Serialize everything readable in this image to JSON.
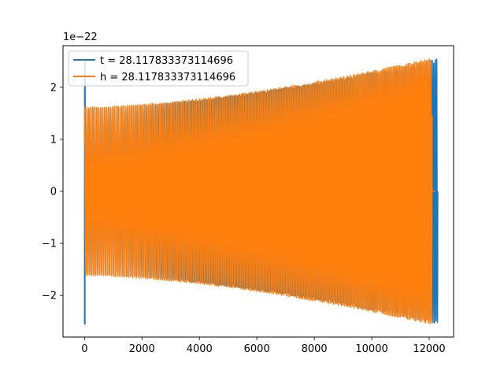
{
  "chart_data": {
    "type": "line",
    "title": "",
    "xlabel": "",
    "ylabel": "",
    "y_scale_label": "1e−22",
    "xlim": [
      -750,
      12850
    ],
    "ylim": [
      -2.8,
      2.8
    ],
    "xticks": [
      0,
      2000,
      4000,
      6000,
      8000,
      10000,
      12000
    ],
    "xtick_labels": [
      "0",
      "2000",
      "4000",
      "6000",
      "8000",
      "10000",
      "12000"
    ],
    "yticks": [
      -2,
      -1,
      0,
      1,
      2
    ],
    "ytick_labels": [
      "−2",
      "−1",
      "0",
      "1",
      "2"
    ],
    "grid": false,
    "legend_placement": "top-left",
    "series": [
      {
        "name": "t = 28.117833373114696",
        "color": "#1f77b4",
        "x_start": 0,
        "x_end": 12300,
        "amplitude_start": 1.6,
        "amplitude_end": 2.55,
        "initial_spike": 2.55,
        "approx_cycles": 210
      },
      {
        "name": "h = 28.117833373114696",
        "color": "#ff7f0e",
        "x_start": 0,
        "x_end": 12100,
        "amplitude_start": 1.62,
        "amplitude_end": 2.56,
        "flat_tail_end": 12200,
        "approx_cycles": 205
      }
    ]
  }
}
